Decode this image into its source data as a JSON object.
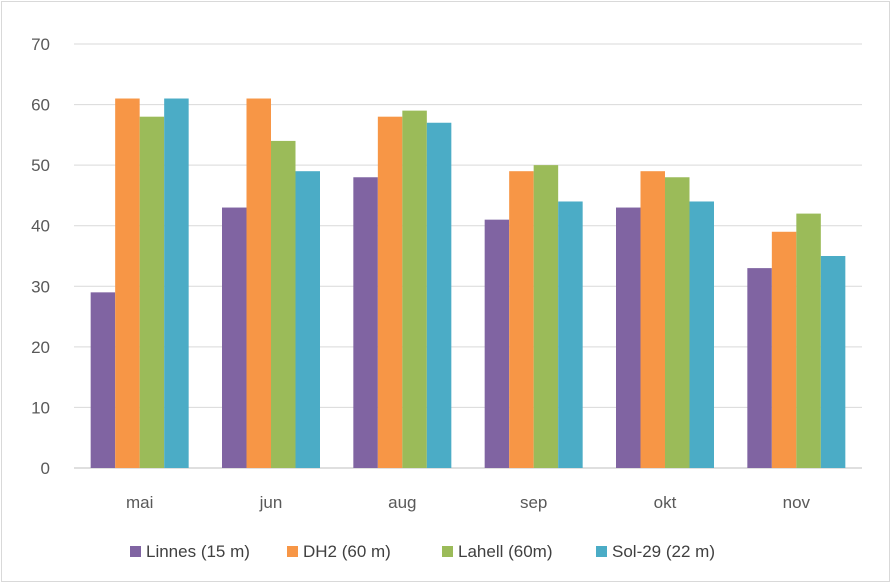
{
  "chart_data": {
    "type": "bar",
    "categories": [
      "mai",
      "jun",
      "aug",
      "sep",
      "okt",
      "nov"
    ],
    "series": [
      {
        "name": "Linnes (15 m)",
        "color": "#8064a2",
        "values": [
          29,
          43,
          48,
          41,
          43,
          33
        ]
      },
      {
        "name": "DH2 (60 m)",
        "color": "#f79646",
        "values": [
          61,
          61,
          58,
          49,
          49,
          39
        ]
      },
      {
        "name": "Lahell (60m)",
        "color": "#9bbb59",
        "values": [
          58,
          54,
          59,
          50,
          48,
          42
        ]
      },
      {
        "name": "Sol-29 (22 m)",
        "color": "#4bacc6",
        "values": [
          61,
          49,
          57,
          44,
          44,
          35
        ]
      }
    ],
    "yticks": [
      "0",
      "10",
      "20",
      "30",
      "40",
      "50",
      "60",
      "70"
    ],
    "ylim": [
      0,
      70
    ],
    "grid": true,
    "legend_position": "bottom"
  }
}
